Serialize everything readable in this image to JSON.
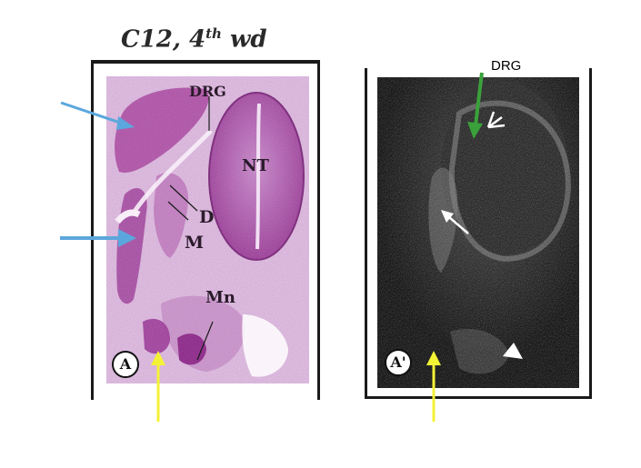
{
  "figure": {
    "title": "C12, 4",
    "title_sup": "th",
    "title_suffix": " wd",
    "panel_a": {
      "badge": "A",
      "labels": {
        "drg": "DRG",
        "nt": "NT",
        "d": "D",
        "m": "M",
        "mn": "Mn"
      }
    },
    "panel_b": {
      "badge": "A'",
      "label_drg": "DRG"
    },
    "arrow_colors": {
      "blue": "#5ba7dd",
      "green": "#3aa13a",
      "yellow": "#f4f235"
    }
  }
}
